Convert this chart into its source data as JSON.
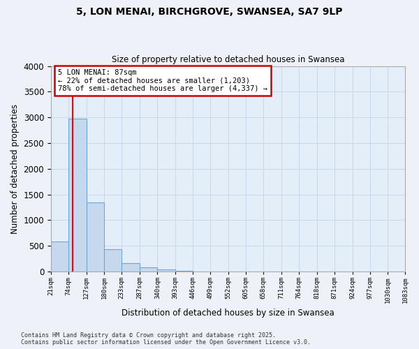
{
  "title1": "5, LON MENAI, BIRCHGROVE, SWANSEA, SA7 9LP",
  "title2": "Size of property relative to detached houses in Swansea",
  "xlabel": "Distribution of detached houses by size in Swansea",
  "ylabel": "Number of detached properties",
  "bins": [
    21,
    74,
    127,
    180,
    233,
    287,
    340,
    393,
    446,
    499,
    552,
    605,
    658,
    711,
    764,
    818,
    871,
    924,
    977,
    1030,
    1083
  ],
  "counts": [
    580,
    2970,
    1340,
    430,
    160,
    85,
    40,
    15,
    6,
    3,
    2,
    1,
    1,
    0,
    0,
    0,
    0,
    0,
    0,
    0
  ],
  "bar_color": "#c5d8ee",
  "bar_edge_color": "#6aaad4",
  "grid_color": "#c8d8e8",
  "red_line_x": 87,
  "annotation_text": "5 LON MENAI: 87sqm\n← 22% of detached houses are smaller (1,203)\n78% of semi-detached houses are larger (4,337) →",
  "annotation_box_color": "#ffffff",
  "annotation_border_color": "#cc0000",
  "ylim": [
    0,
    4000
  ],
  "yticks": [
    0,
    500,
    1000,
    1500,
    2000,
    2500,
    3000,
    3500,
    4000
  ],
  "footer1": "Contains HM Land Registry data © Crown copyright and database right 2025.",
  "footer2": "Contains public sector information licensed under the Open Government Licence v3.0.",
  "bg_color": "#eef2f8",
  "plot_bg_color": "#e4eef8"
}
